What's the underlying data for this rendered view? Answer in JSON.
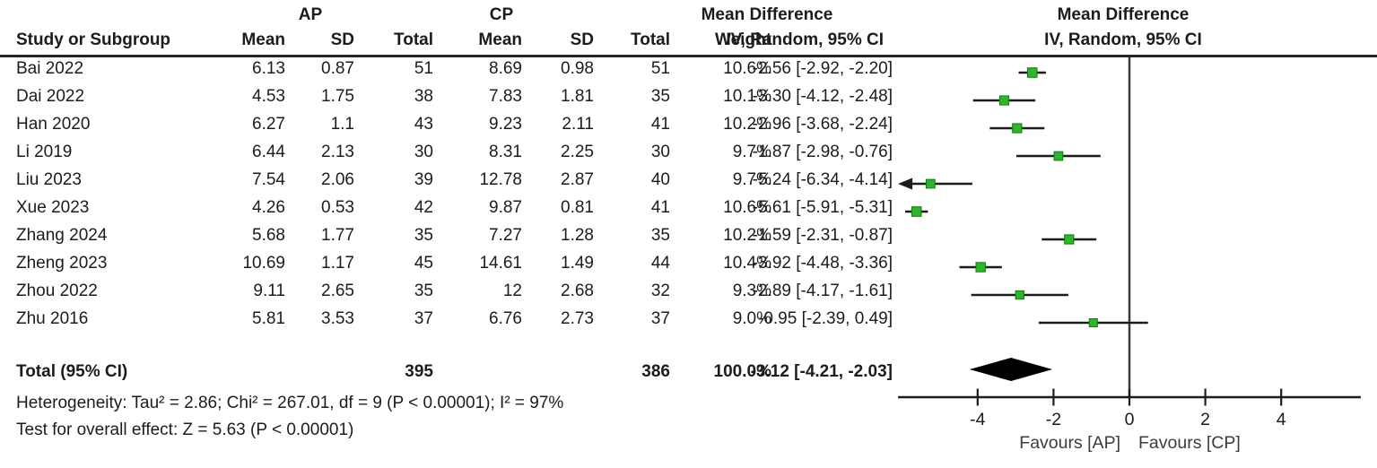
{
  "title_row": {
    "group1": "AP",
    "group2": "CP",
    "effect_left": "Mean Difference",
    "effect_right": "Mean Difference"
  },
  "header_row": {
    "study": "Study or Subgroup",
    "mean1": "Mean",
    "sd1": "SD",
    "total1": "Total",
    "mean2": "Mean",
    "sd2": "SD",
    "total2": "Total",
    "weight": "Weight",
    "method_left": "IV, Random, 95% CI",
    "method_right": "IV, Random, 95% CI"
  },
  "chart_data": {
    "type": "forest",
    "effect_measure": "Mean Difference",
    "model": "IV, Random, 95% CI",
    "group1_label": "AP",
    "group2_label": "CP",
    "studies": [
      {
        "name": "Bai 2022",
        "g1_mean": "6.13",
        "g1_sd": "0.87",
        "g1_total": "51",
        "g2_mean": "8.69",
        "g2_sd": "0.98",
        "g2_total": "51",
        "weight": "10.6%",
        "ci_text": "-2.56 [-2.92, -2.20]",
        "md": -2.56,
        "lo": -2.92,
        "hi": -2.2
      },
      {
        "name": "Dai 2022",
        "g1_mean": "4.53",
        "g1_sd": "1.75",
        "g1_total": "38",
        "g2_mean": "7.83",
        "g2_sd": "1.81",
        "g2_total": "35",
        "weight": "10.1%",
        "ci_text": "-3.30 [-4.12, -2.48]",
        "md": -3.3,
        "lo": -4.12,
        "hi": -2.48
      },
      {
        "name": "Han 2020",
        "g1_mean": "6.27",
        "g1_sd": "1.1",
        "g1_total": "43",
        "g2_mean": "9.23",
        "g2_sd": "2.11",
        "g2_total": "41",
        "weight": "10.2%",
        "ci_text": "-2.96 [-3.68, -2.24]",
        "md": -2.96,
        "lo": -3.68,
        "hi": -2.24
      },
      {
        "name": "Li 2019",
        "g1_mean": "6.44",
        "g1_sd": "2.13",
        "g1_total": "30",
        "g2_mean": "8.31",
        "g2_sd": "2.25",
        "g2_total": "30",
        "weight": "9.7%",
        "ci_text": "-1.87 [-2.98, -0.76]",
        "md": -1.87,
        "lo": -2.98,
        "hi": -0.76
      },
      {
        "name": "Liu 2023",
        "g1_mean": "7.54",
        "g1_sd": "2.06",
        "g1_total": "39",
        "g2_mean": "12.78",
        "g2_sd": "2.87",
        "g2_total": "40",
        "weight": "9.7%",
        "ci_text": "-5.24 [-6.34, -4.14]",
        "md": -5.24,
        "lo": -6.34,
        "hi": -4.14
      },
      {
        "name": "Xue 2023",
        "g1_mean": "4.26",
        "g1_sd": "0.53",
        "g1_total": "42",
        "g2_mean": "9.87",
        "g2_sd": "0.81",
        "g2_total": "41",
        "weight": "10.6%",
        "ci_text": "-5.61 [-5.91, -5.31]",
        "md": -5.61,
        "lo": -5.91,
        "hi": -5.31
      },
      {
        "name": "Zhang 2024",
        "g1_mean": "5.68",
        "g1_sd": "1.77",
        "g1_total": "35",
        "g2_mean": "7.27",
        "g2_sd": "1.28",
        "g2_total": "35",
        "weight": "10.2%",
        "ci_text": "-1.59 [-2.31, -0.87]",
        "md": -1.59,
        "lo": -2.31,
        "hi": -0.87
      },
      {
        "name": "Zheng 2023",
        "g1_mean": "10.69",
        "g1_sd": "1.17",
        "g1_total": "45",
        "g2_mean": "14.61",
        "g2_sd": "1.49",
        "g2_total": "44",
        "weight": "10.4%",
        "ci_text": "-3.92 [-4.48, -3.36]",
        "md": -3.92,
        "lo": -4.48,
        "hi": -3.36
      },
      {
        "name": "Zhou 2022",
        "g1_mean": "9.11",
        "g1_sd": "2.65",
        "g1_total": "35",
        "g2_mean": "12",
        "g2_sd": "2.68",
        "g2_total": "32",
        "weight": "9.3%",
        "ci_text": "-2.89 [-4.17, -1.61]",
        "md": -2.89,
        "lo": -4.17,
        "hi": -1.61
      },
      {
        "name": "Zhu 2016",
        "g1_mean": "5.81",
        "g1_sd": "3.53",
        "g1_total": "37",
        "g2_mean": "6.76",
        "g2_sd": "2.73",
        "g2_total": "37",
        "weight": "9.0%",
        "ci_text": "-0.95 [-2.39, 0.49]",
        "md": -0.95,
        "lo": -2.39,
        "hi": 0.49
      }
    ],
    "total": {
      "label": "Total (95% CI)",
      "g1_total": "395",
      "g2_total": "386",
      "weight": "100.0%",
      "ci_text": "-3.12 [-4.21, -2.03]",
      "md": -3.12,
      "lo": -4.21,
      "hi": -2.03
    },
    "axis": {
      "min": -6.05,
      "max": 6.05,
      "ticks": [
        -4,
        -2,
        0,
        2,
        4
      ],
      "favours_left": "Favours [AP]",
      "favours_right": "Favours [CP]"
    },
    "colors": {
      "marker_fill": "#2db52d",
      "marker_stroke": "#117a11",
      "line": "#1c1c1c",
      "diamond": "#000000",
      "favours_text": "#3c3c3c"
    }
  },
  "footer": {
    "heterogeneity": "Heterogeneity: Tau² = 2.86; Chi² = 267.01, df = 9 (P < 0.00001); I² = 97%",
    "overall": "Test for overall effect: Z = 5.63 (P < 0.00001)"
  }
}
